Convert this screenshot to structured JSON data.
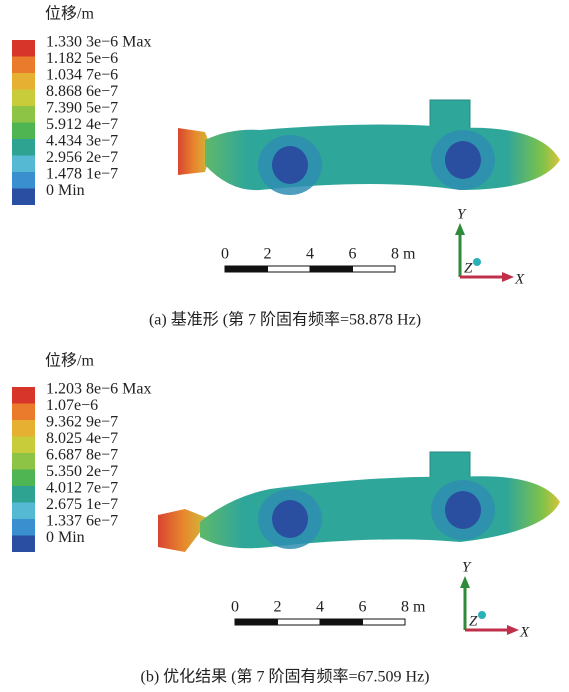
{
  "panels": [
    {
      "legend_title": "位移/m",
      "legend_labels": [
        "1.330 3e−6 Max",
        "1.182 5e−6",
        "1.034 7e−6",
        "8.868 6e−7",
        "7.390 5e−7",
        "5.912 4e−7",
        "4.434 3e−7",
        "2.956 2e−7",
        "1.478 1e−7",
        "0 Min"
      ],
      "scale_labels": [
        "0",
        "2",
        "4",
        "6",
        "8 m"
      ],
      "axis_labels": [
        "Y",
        "Z",
        "X"
      ],
      "caption": "(a) 基准形 (第 7 阶固有频率=58.878 Hz)"
    },
    {
      "legend_title": "位移/m",
      "legend_labels": [
        "1.203 8e−6 Max",
        "1.07e−6",
        "9.362 9e−7",
        "8.025 4e−7",
        "6.687 8e−7",
        "5.350 2e−7",
        "4.012 7e−7",
        "2.675 1e−7",
        "1.337 6e−7",
        "0 Min"
      ],
      "scale_labels": [
        "0",
        "2",
        "4",
        "6",
        "8 m"
      ],
      "axis_labels": [
        "Y",
        "Z",
        "X"
      ],
      "caption": "(b) 优化结果 (第 7 阶固有频率=67.509 Hz)"
    }
  ]
}
